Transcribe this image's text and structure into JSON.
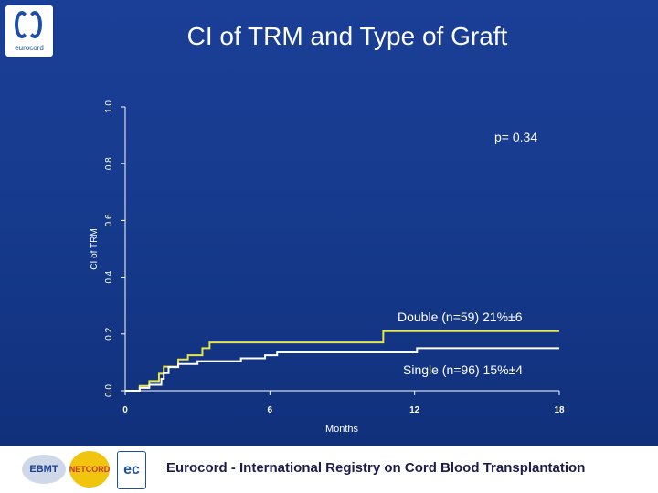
{
  "logo": {
    "text": "eurocord"
  },
  "footer": {
    "text": "Eurocord - International Registry on Cord Blood Transplantation",
    "logos": {
      "ebmt": "EBMT",
      "netcord": "NETCORD",
      "eurocord_mark": "ec"
    }
  },
  "colors": {
    "background": "#1b3f96",
    "double": "#e6e64a",
    "single": "#ffffff"
  },
  "chart_data": {
    "type": "line",
    "step": true,
    "title": "CI of TRM and Type of Graft",
    "xlabel": "Months",
    "ylabel": "CI of TRM",
    "xlim": [
      0,
      18
    ],
    "ylim": [
      0,
      1.0
    ],
    "xticks": [
      "0",
      "6",
      "12",
      "18"
    ],
    "xtick_values": [
      0,
      6,
      12,
      18
    ],
    "yticks": [
      "0.0",
      "0.2",
      "0.4",
      "0.6",
      "0.8",
      "1.0"
    ],
    "ytick_values": [
      0,
      0.2,
      0.4,
      0.6,
      0.8,
      1.0
    ],
    "grid": false,
    "annotations": {
      "pvalue": "p= 0.34"
    },
    "series": [
      {
        "name": "Double (n=59) 21%±6",
        "x": [
          0,
          0.6,
          1.0,
          1.4,
          1.6,
          2.2,
          2.6,
          3.2,
          3.5,
          10.7,
          18
        ],
        "y": [
          0,
          0.017,
          0.034,
          0.06,
          0.085,
          0.11,
          0.125,
          0.15,
          0.17,
          0.21,
          0.21
        ]
      },
      {
        "name": "Single (n=96) 15%±4",
        "x": [
          0,
          0.6,
          1.0,
          1.5,
          1.6,
          1.8,
          2.2,
          3.0,
          4.8,
          5.8,
          6.3,
          11.7,
          12.1,
          18
        ],
        "y": [
          0,
          0.01,
          0.021,
          0.042,
          0.062,
          0.083,
          0.094,
          0.104,
          0.114,
          0.125,
          0.135,
          0.135,
          0.15,
          0.15
        ]
      }
    ]
  }
}
